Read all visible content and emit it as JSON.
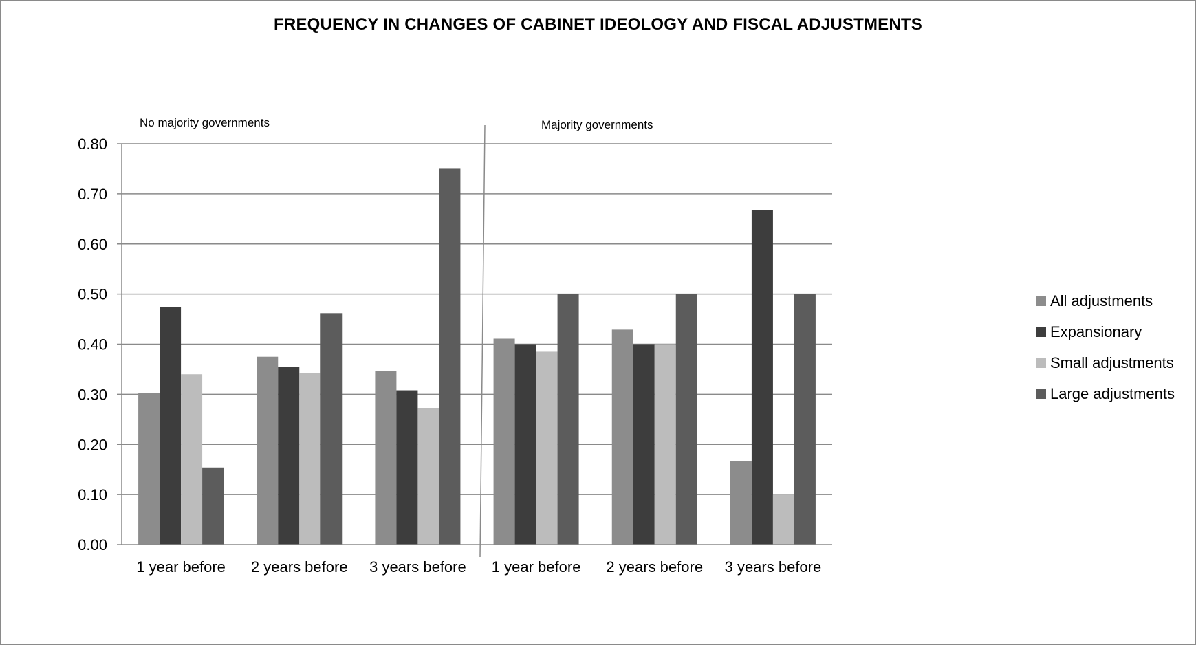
{
  "chart_data": {
    "type": "bar",
    "title": "FREQUENCY IN CHANGES OF CABINET IDEOLOGY AND FISCAL ADJUSTMENTS",
    "xlabel": "",
    "ylabel": "",
    "ylim": [
      0,
      0.8
    ],
    "yticks": [
      "0.00",
      "0.10",
      "0.20",
      "0.30",
      "0.40",
      "0.50",
      "0.60",
      "0.70",
      "0.80"
    ],
    "grid": true,
    "legend_position": "right",
    "sections": [
      "No majority governments",
      "Majority governments"
    ],
    "categories": [
      "1 year before",
      "2 years before",
      "3 years before",
      "1 year before",
      "2 years before",
      "3 years before"
    ],
    "series": [
      {
        "name": "All adjustments",
        "color": "#8c8c8c",
        "values": [
          0.303,
          0.375,
          0.346,
          0.411,
          0.429,
          0.167
        ]
      },
      {
        "name": "Expansionary",
        "color": "#3d3d3d",
        "values": [
          0.474,
          0.355,
          0.308,
          0.4,
          0.4,
          0.667
        ]
      },
      {
        "name": "Small adjustments",
        "color": "#bcbcbc",
        "values": [
          0.34,
          0.342,
          0.273,
          0.385,
          0.4,
          0.1
        ]
      },
      {
        "name": "Large adjustments",
        "color": "#5c5c5c",
        "values": [
          0.154,
          0.462,
          0.75,
          0.5,
          0.5,
          0.5
        ]
      }
    ]
  }
}
